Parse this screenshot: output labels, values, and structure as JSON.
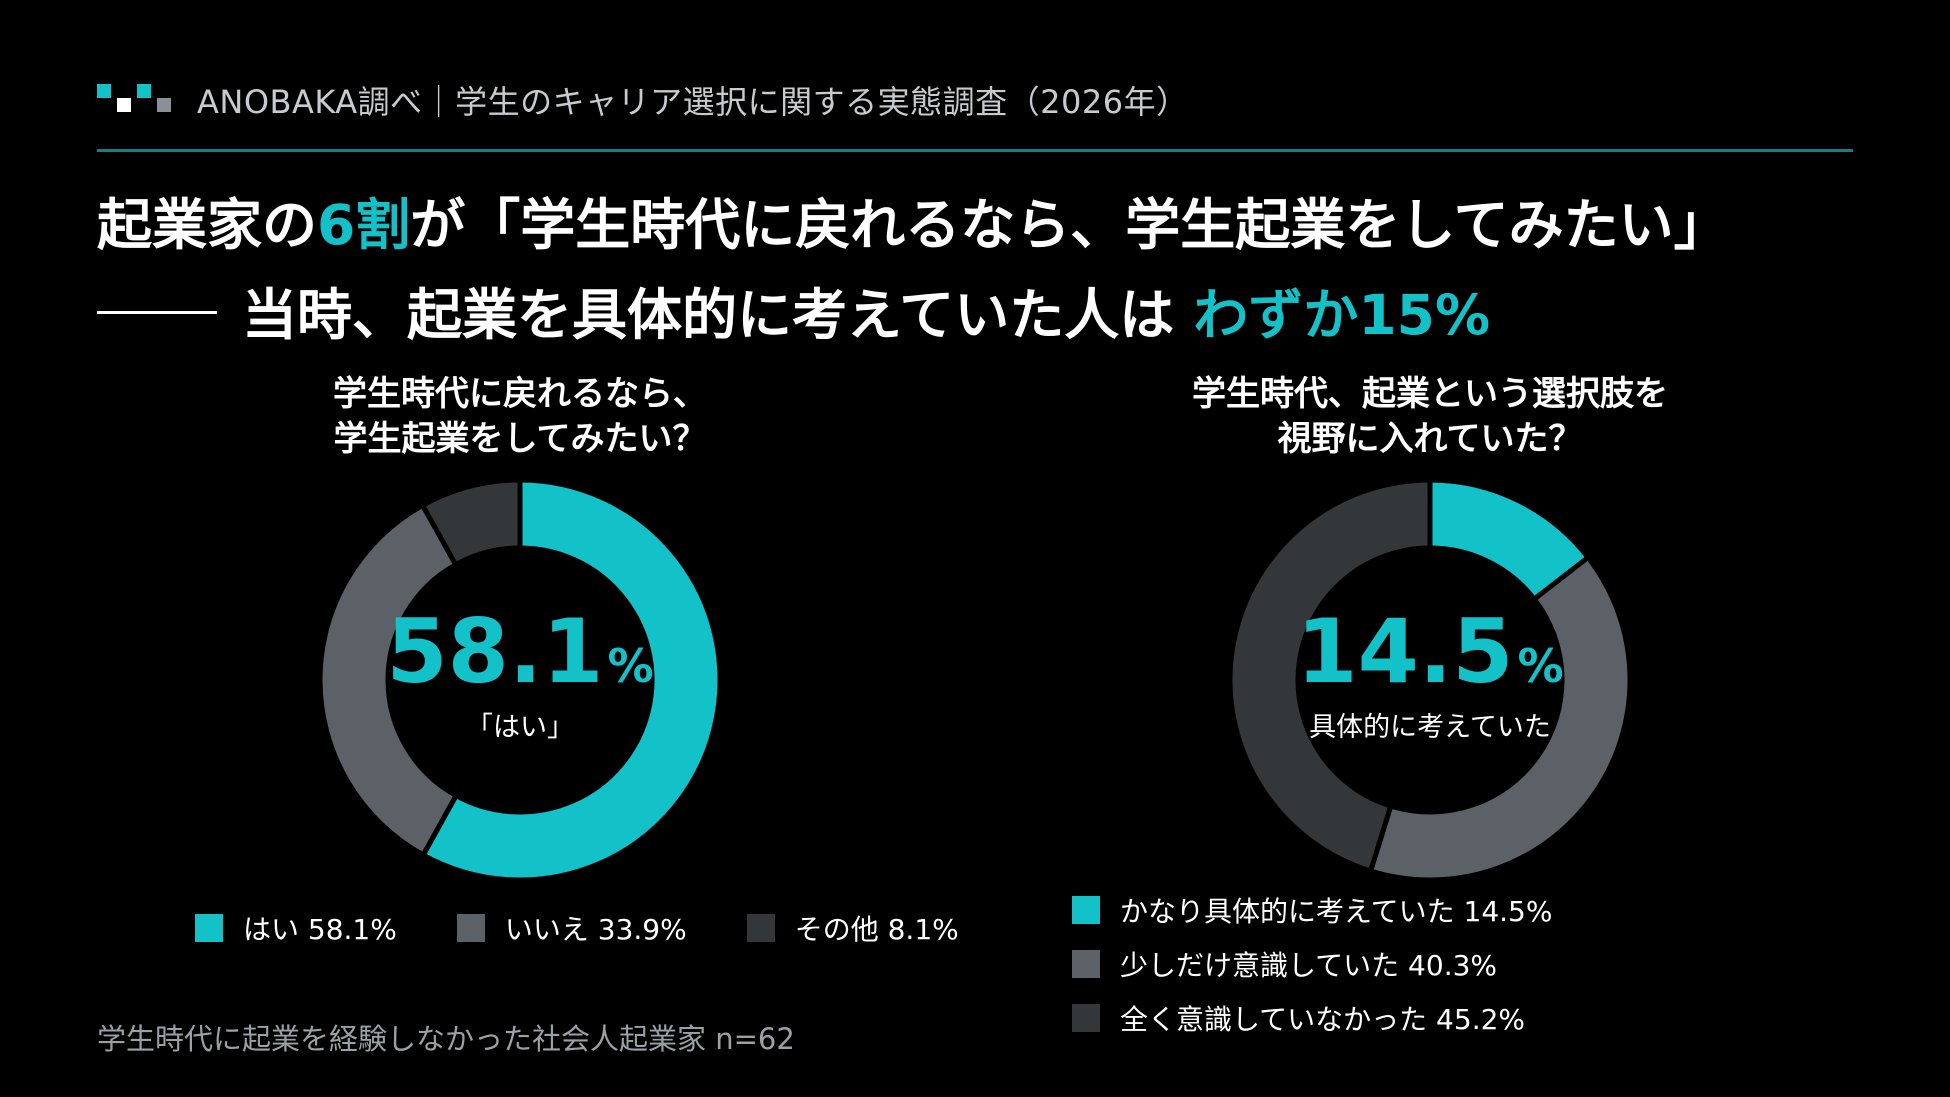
{
  "header": {
    "text": "ANOBAKA調べ｜学生のキャリア選択に関する実態調査（2026年）"
  },
  "headline": {
    "line1_pre": "起業家の",
    "line1_accent": "6割",
    "line1_post": "が「学生時代に戻れるなら、学生起業をしてみたい」",
    "line2_pre": "当時、起業を具体的に考えていた人は ",
    "line2_accent": "わずか15%"
  },
  "colors": {
    "accent": "#13c1c8",
    "mid_gray": "#5b6166",
    "dark_gray": "#33373a",
    "rule": "#1a7d80"
  },
  "chart_data": [
    {
      "type": "pie",
      "title": "学生時代に戻れるなら、\n学生起業をしてみたい？",
      "title_lines": [
        "学生時代に戻れるなら、",
        "学生起業をしてみたい？"
      ],
      "center_value": "58.1",
      "center_unit": "%",
      "center_label": "「はい」",
      "slices": [
        {
          "label": "はい",
          "value": 58.1,
          "legend": "はい 58.1%",
          "color": "#13c1c8"
        },
        {
          "label": "いいえ",
          "value": 33.9,
          "legend": "いいえ 33.9%",
          "color": "#5b6166"
        },
        {
          "label": "その他",
          "value": 8.1,
          "legend": "その他 8.1%",
          "color": "#33373a"
        }
      ]
    },
    {
      "type": "pie",
      "title": "学生時代、起業という選択肢を\n視野に入れていた？",
      "title_lines": [
        "学生時代、起業という選択肢を",
        "視野に入れていた？"
      ],
      "center_value": "14.5",
      "center_unit": "%",
      "center_label": "具体的に考えていた",
      "slices": [
        {
          "label": "かなり具体的に考えていた",
          "value": 14.5,
          "legend": "かなり具体的に考えていた 14.5%",
          "color": "#13c1c8"
        },
        {
          "label": "少しだけ意識していた",
          "value": 40.3,
          "legend": "少しだけ意識していた 40.3%",
          "color": "#5b6166"
        },
        {
          "label": "全く意識していなかった",
          "value": 45.2,
          "legend": "全く意識していなかった 45.2%",
          "color": "#33373a"
        }
      ]
    }
  ],
  "footnote": "学生時代に起業を経験しなかった社会人起業家 n=62"
}
